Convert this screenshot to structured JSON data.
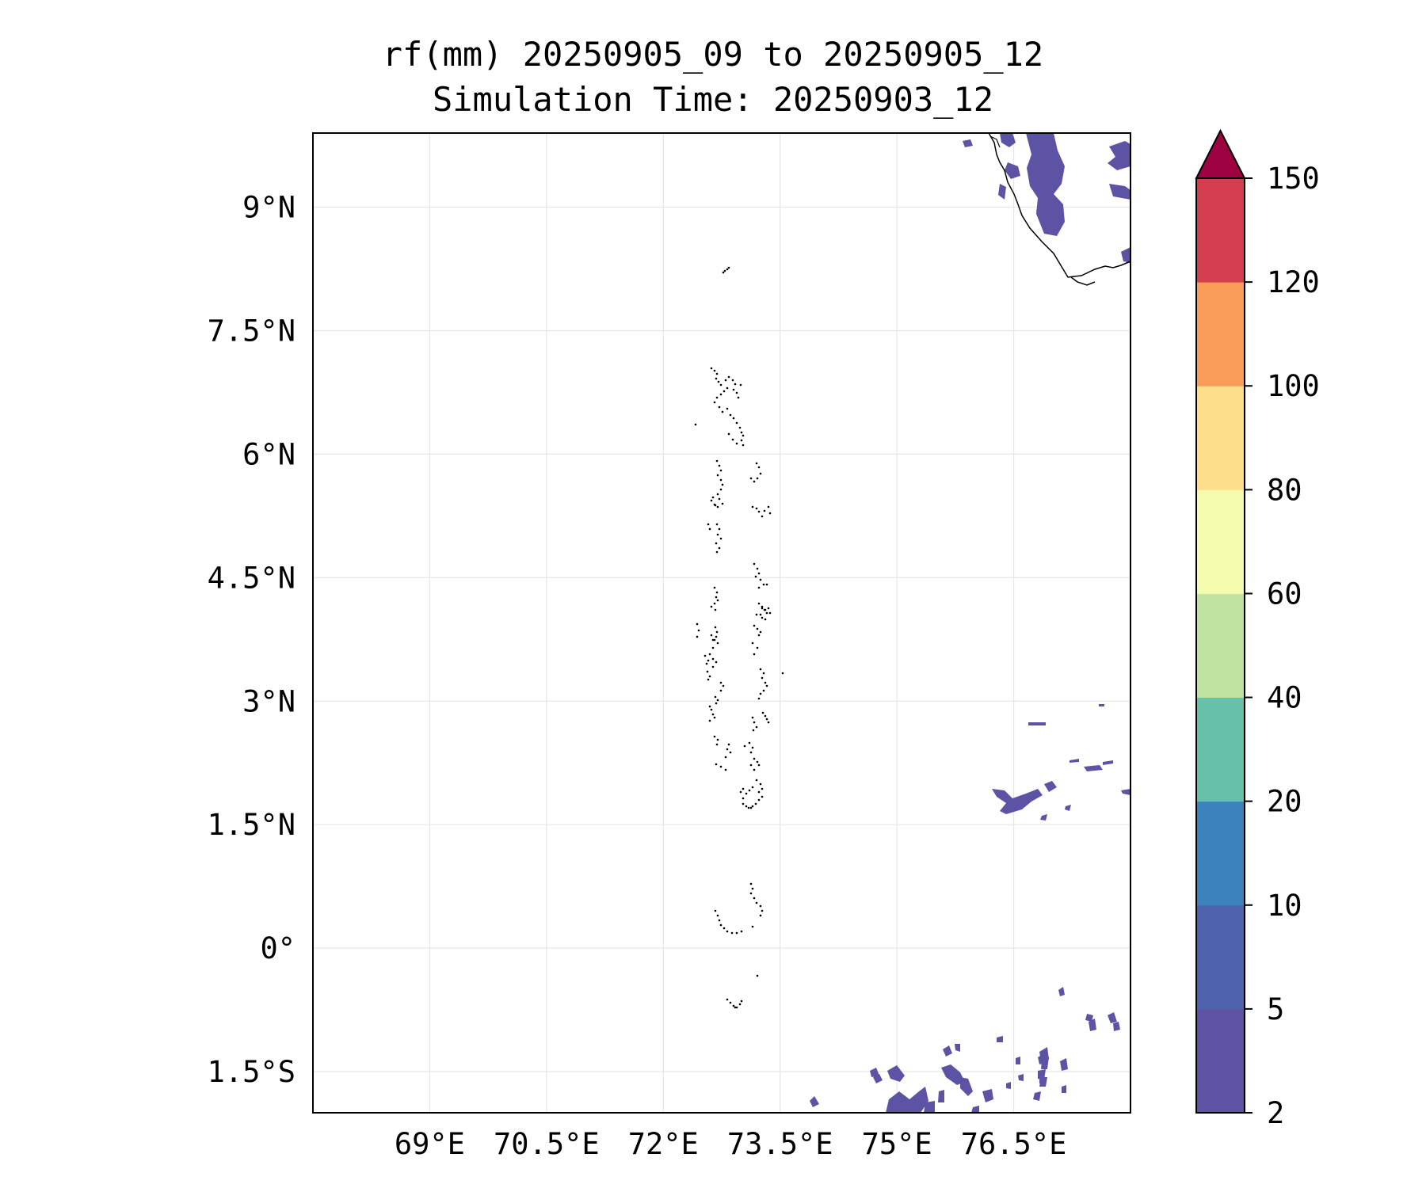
{
  "map": {
    "title_line1": "rf(mm) 20250905_09 to 20250905_12",
    "title_line2": "Simulation Time: 20250903_12",
    "lon_range": [
      67.5,
      78.0
    ],
    "lat_range": [
      -2.0,
      9.9
    ],
    "lon_ticks": [
      {
        "value": 69.0,
        "label": "69°E"
      },
      {
        "value": 70.5,
        "label": "70.5°E"
      },
      {
        "value": 72.0,
        "label": "72°E"
      },
      {
        "value": 73.5,
        "label": "73.5°E"
      },
      {
        "value": 75.0,
        "label": "75°E"
      },
      {
        "value": 76.5,
        "label": "76.5°E"
      }
    ],
    "lat_ticks": [
      {
        "value": 9.0,
        "label": "9°N"
      },
      {
        "value": 7.5,
        "label": "7.5°N"
      },
      {
        "value": 6.0,
        "label": "6°N"
      },
      {
        "value": 4.5,
        "label": "4.5°N"
      },
      {
        "value": 3.0,
        "label": "3°N"
      },
      {
        "value": 1.5,
        "label": "1.5°N"
      },
      {
        "value": 0.0,
        "label": "0°"
      },
      {
        "value": -1.5,
        "label": "1.5°S"
      }
    ],
    "grid": true,
    "rain_color": "#5c53a5"
  },
  "colorbar": {
    "levels": [
      {
        "value": 2,
        "label": "2"
      },
      {
        "value": 5,
        "label": "5"
      },
      {
        "value": 10,
        "label": "10"
      },
      {
        "value": 20,
        "label": "20"
      },
      {
        "value": 40,
        "label": "40"
      },
      {
        "value": 60,
        "label": "60"
      },
      {
        "value": 80,
        "label": "80"
      },
      {
        "value": 100,
        "label": "100"
      },
      {
        "value": 120,
        "label": "120"
      },
      {
        "value": 150,
        "label": "150"
      }
    ],
    "colors": [
      "#5c53a5",
      "#4e62ae",
      "#3b82bc",
      "#66c0aa",
      "#bee4a0",
      "#f4fbae",
      "#fddf8b",
      "#f99d59",
      "#d53e4f"
    ],
    "extend_color": "#9e0142"
  }
}
